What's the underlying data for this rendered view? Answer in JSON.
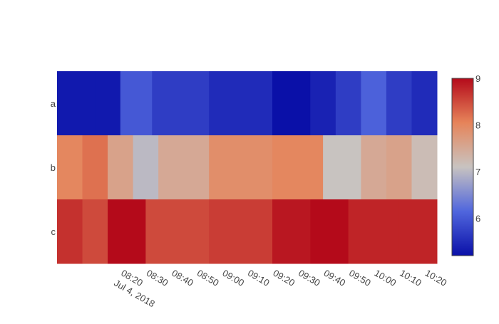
{
  "chart_data": {
    "type": "heatmap",
    "title": "",
    "xlabel": "",
    "ylabel": "",
    "y_categories": [
      "a",
      "b",
      "c"
    ],
    "x_timestamps": [
      "2018-07-04 08:00",
      "2018-07-04 08:10",
      "2018-07-04 08:20",
      "2018-07-04 08:30",
      "2018-07-04 08:40",
      "2018-07-04 08:50",
      "2018-07-04 09:00",
      "2018-07-04 09:10",
      "2018-07-04 09:20",
      "2018-07-04 09:30",
      "2018-07-04 09:40",
      "2018-07-04 09:50",
      "2018-07-04 10:00",
      "2018-07-04 10:10",
      "2018-07-04 10:20"
    ],
    "x_tick_labels": [
      "08:20",
      "08:30",
      "08:40",
      "08:50",
      "09:00",
      "09:10",
      "09:20",
      "09:30",
      "09:40",
      "09:50",
      "10:00",
      "10:10",
      "10:20"
    ],
    "x_tick_values": [
      "2018-07-04 08:20",
      "2018-07-04 08:30",
      "2018-07-04 08:40",
      "2018-07-04 08:50",
      "2018-07-04 09:00",
      "2018-07-04 09:10",
      "2018-07-04 09:20",
      "2018-07-04 09:30",
      "2018-07-04 09:40",
      "2018-07-04 09:50",
      "2018-07-04 10:00",
      "2018-07-04 10:10",
      "2018-07-04 10:20"
    ],
    "x_date_label": "Jul 4, 2018",
    "cells": [
      {
        "x": "2018-07-04 08:05",
        "y": "a",
        "value": 5.3
      },
      {
        "x": "2018-07-04 08:15",
        "y": "a",
        "value": 5.3
      },
      {
        "x": "2018-07-04 08:25",
        "y": "a",
        "value": 6.0
      },
      {
        "x": "2018-07-04 08:40",
        "y": "a",
        "value": 5.7
      },
      {
        "x": "2018-07-04 09:10",
        "y": "a",
        "value": 5.5
      },
      {
        "x": "2018-07-04 09:30",
        "y": "a",
        "value": 5.2
      },
      {
        "x": "2018-07-04 09:40",
        "y": "a",
        "value": 5.4
      },
      {
        "x": "2018-07-04 09:50",
        "y": "a",
        "value": 5.7
      },
      {
        "x": "2018-07-04 10:00",
        "y": "a",
        "value": 6.1
      },
      {
        "x": "2018-07-04 10:10",
        "y": "a",
        "value": 5.7
      },
      {
        "x": "2018-07-04 10:20",
        "y": "a",
        "value": 5.5
      },
      {
        "x": "2018-07-04 08:00",
        "y": "b",
        "value": 8.0
      },
      {
        "x": "2018-07-04 08:10",
        "y": "b",
        "value": 8.2
      },
      {
        "x": "2018-07-04 08:20",
        "y": "b",
        "value": 7.6
      },
      {
        "x": "2018-07-04 08:30",
        "y": "b",
        "value": 7.0
      },
      {
        "x": "2018-07-04 08:40",
        "y": "b",
        "value": 7.5
      },
      {
        "x": "2018-07-04 09:10",
        "y": "b",
        "value": 7.9
      },
      {
        "x": "2018-07-04 09:30",
        "y": "b",
        "value": 8.0
      },
      {
        "x": "2018-07-04 09:50",
        "y": "b",
        "value": 7.1
      },
      {
        "x": "2018-07-04 10:00",
        "y": "b",
        "value": 7.5
      },
      {
        "x": "2018-07-04 10:10",
        "y": "b",
        "value": 7.6
      },
      {
        "x": "2018-07-04 10:20",
        "y": "b",
        "value": 7.2
      },
      {
        "x": "2018-07-04 08:00",
        "y": "c",
        "value": 8.7
      },
      {
        "x": "2018-07-04 08:10",
        "y": "c",
        "value": 8.5
      },
      {
        "x": "2018-07-04 08:20",
        "y": "c",
        "value": 9.0
      },
      {
        "x": "2018-07-04 08:40",
        "y": "c",
        "value": 8.5
      },
      {
        "x": "2018-07-04 09:10",
        "y": "c",
        "value": 8.6
      },
      {
        "x": "2018-07-04 09:30",
        "y": "c",
        "value": 8.9
      },
      {
        "x": "2018-07-04 09:40",
        "y": "c",
        "value": 9.0
      },
      {
        "x": "2018-07-04 10:00",
        "y": "c",
        "value": 8.8
      },
      {
        "x": "2018-07-04 10:20",
        "y": "c",
        "value": 8.8
      }
    ],
    "colorscale": "coolwarm",
    "colorscale_stops": [
      [
        0.0,
        "#0a10a8"
      ],
      [
        0.25,
        "#5066dd"
      ],
      [
        0.5,
        "#c8c3c0"
      ],
      [
        0.75,
        "#e6845a"
      ],
      [
        1.0,
        "#b40a1a"
      ]
    ],
    "zmin": 5.2,
    "zmax": 9.0,
    "colorbar_ticks": [
      6,
      7,
      8,
      9
    ],
    "grid": false,
    "legend": "colorbar-right"
  }
}
